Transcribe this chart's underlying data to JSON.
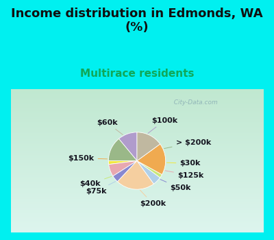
{
  "title": "Income distribution in Edmonds, WA\n(%)",
  "subtitle": "Multirace residents",
  "labels": [
    "$100k",
    "> $200k",
    "$30k",
    "$125k",
    "$50k",
    "$200k",
    "$75k",
    "$40k",
    "$150k",
    "$60k"
  ],
  "sizes": [
    11,
    14,
    2,
    7,
    4,
    22,
    5,
    2,
    18,
    15
  ],
  "colors": [
    "#b09ccc",
    "#9ab888",
    "#f0e840",
    "#e8a8b0",
    "#8888d0",
    "#f5cfa0",
    "#b0d0e8",
    "#c8e878",
    "#f0aa50",
    "#c0b8a0"
  ],
  "watermark": "City-Data.com",
  "label_fontsize": 8,
  "title_fontsize": 13,
  "subtitle_fontsize": 11,
  "subtitle_color": "#10a858",
  "title_color": "#101010",
  "startangle": 90,
  "cyan_color": "#00f0f0",
  "chart_bg_top": "#e0f5f0",
  "chart_bg_bottom": "#c8ecd8"
}
